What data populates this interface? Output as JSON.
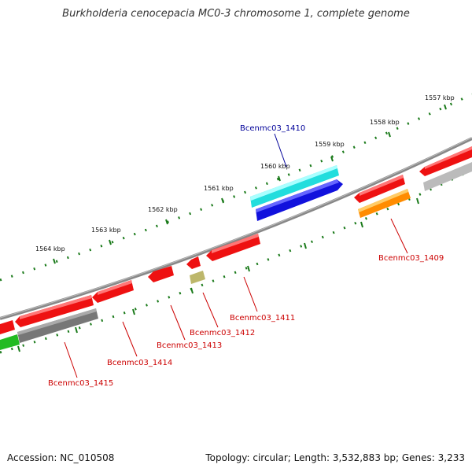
{
  "title": "Burkholderia cenocepacia MC0-3 chromosome 1, complete genome",
  "footer": {
    "accession": "Accession: NC_010508",
    "summary": "Topology: circular; Length: 3,532,883 bp; Genes: 3,233"
  },
  "scale": {
    "unit": "kbp",
    "labels": [
      "1557 kbp",
      "1558 kbp",
      "1559 kbp",
      "1560 kbp",
      "1561 kbp",
      "1562 kbp",
      "1563 kbp",
      "1564 kbp"
    ]
  },
  "gene_labels": {
    "g1409": "Bcenmc03_1409",
    "g1410": "Bcenmc03_1410",
    "g1411": "Bcenmc03_1411",
    "g1412": "Bcenmc03_1412",
    "g1413": "Bcenmc03_1413",
    "g1414": "Bcenmc03_1414",
    "g1415": "Bcenmc03_1415"
  },
  "colors": {
    "backbone": "#888888",
    "ruler_tick": "#1a7a1a",
    "red_gene": "#ee1111",
    "cyan_gene": "#22dddd",
    "blue_gene": "#1111dd",
    "orange_gene": "#ff8c00",
    "olive_gene": "#bdb76b",
    "gray_gene": "#777777",
    "lightgray_gene": "#bbbbbb",
    "green_gene": "#22bb22",
    "label_red": "#cc0000",
    "label_blue": "#000099"
  }
}
